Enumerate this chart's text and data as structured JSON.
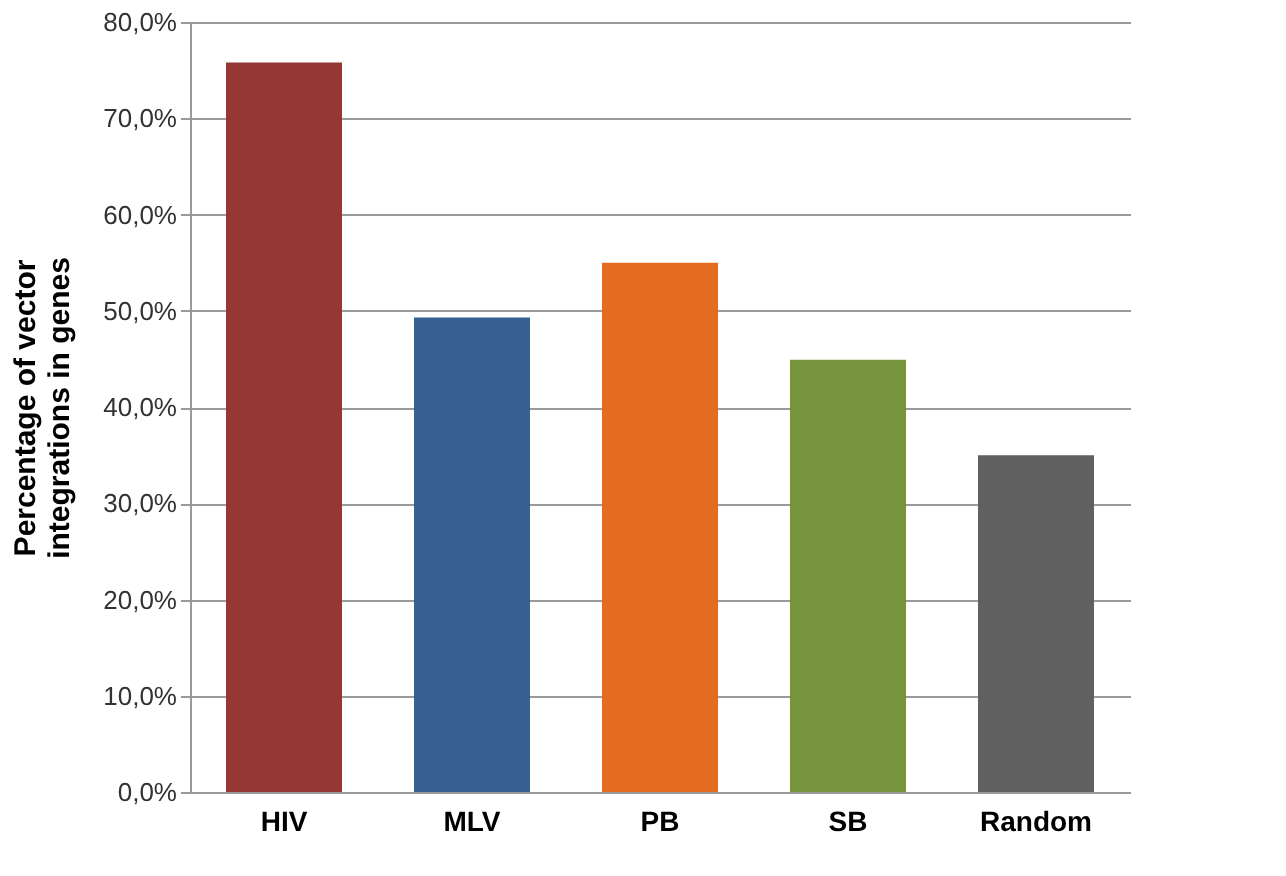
{
  "chart_data": {
    "type": "bar",
    "ylabel": "Percentage of vector integrations in genes",
    "categories": [
      "HIV",
      "MLV",
      "PB",
      "SB",
      "Random"
    ],
    "values": [
      75.8,
      49.3,
      55.0,
      44.9,
      35.0
    ],
    "colors": [
      "#953735",
      "#376092",
      "#e46c22",
      "#77933c",
      "#606060"
    ],
    "ylim": [
      0,
      80
    ],
    "yticks": [
      {
        "value": 0,
        "label": "0,0%"
      },
      {
        "value": 10,
        "label": "10,0%"
      },
      {
        "value": 20,
        "label": "20,0%"
      },
      {
        "value": 30,
        "label": "30,0%"
      },
      {
        "value": 40,
        "label": "40,0%"
      },
      {
        "value": 50,
        "label": "50,0%"
      },
      {
        "value": 60,
        "label": "60,0%"
      },
      {
        "value": 70,
        "label": "70,0%"
      },
      {
        "value": 80,
        "label": "80,0%"
      }
    ],
    "grid": "y"
  }
}
